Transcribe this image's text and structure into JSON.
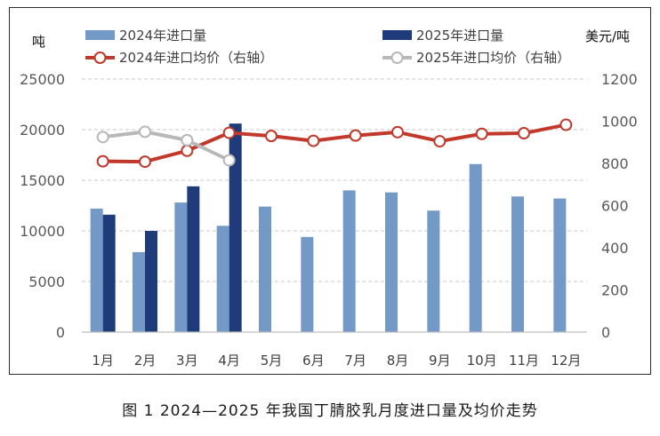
{
  "caption": "图 1 2024—2025 年我国丁腈胶乳月度进口量及均价走势",
  "chart_data": {
    "type": "bar",
    "categories": [
      "1月",
      "2月",
      "3月",
      "4月",
      "5月",
      "6月",
      "7月",
      "8月",
      "9月",
      "10月",
      "11月",
      "12月"
    ],
    "ylabel": "吨",
    "y2label": "美元/吨",
    "ylim": [
      0,
      25000
    ],
    "y2lim": [
      0,
      1200
    ],
    "yticks": [
      0,
      5000,
      10000,
      15000,
      20000,
      25000
    ],
    "y2ticks": [
      0,
      200,
      400,
      600,
      800,
      1000,
      1200
    ],
    "grid": true,
    "legend_position": "top",
    "series": [
      {
        "name": "2024年进口量",
        "type": "bar",
        "axis": "left",
        "color": "#7399c6",
        "values": [
          12200,
          7900,
          12800,
          10500,
          12400,
          9400,
          14000,
          13800,
          12000,
          16600,
          13400,
          13200
        ]
      },
      {
        "name": "2025年进口量",
        "type": "bar",
        "axis": "left",
        "color": "#1f3b7a",
        "values": [
          11600,
          10000,
          14400,
          20600,
          null,
          null,
          null,
          null,
          null,
          null,
          null,
          null
        ]
      },
      {
        "name": "2024年进口均价（右轴）",
        "type": "line",
        "axis": "right",
        "color": "#c0392b",
        "values": [
          810,
          808,
          860,
          945,
          930,
          907,
          932,
          948,
          905,
          940,
          943,
          983
        ]
      },
      {
        "name": "2025年进口均价（右轴）",
        "type": "line",
        "axis": "right",
        "color": "#b8b8b8",
        "values": [
          925,
          950,
          910,
          815,
          null,
          null,
          null,
          null,
          null,
          null,
          null,
          null
        ]
      }
    ]
  }
}
